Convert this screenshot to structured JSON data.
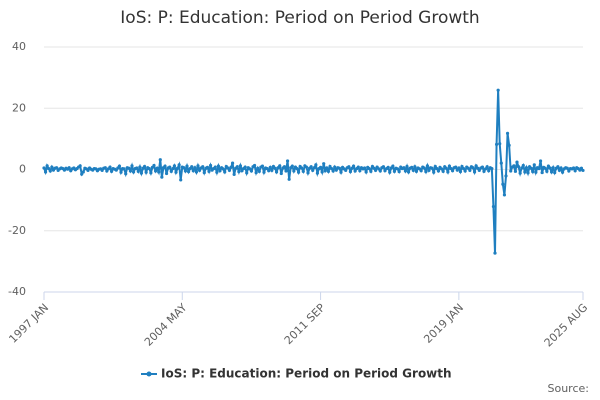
{
  "chart_data": {
    "type": "line",
    "title": "IoS: P: Education: Period on Period Growth",
    "source": "Source:",
    "categories": [
      "1997 JAN",
      null,
      null,
      null,
      null,
      null,
      null,
      null,
      null,
      null,
      null,
      null,
      null,
      null,
      null,
      null,
      null,
      null,
      null,
      null,
      null,
      null,
      null,
      null,
      null,
      null,
      null,
      null,
      null,
      null,
      null,
      null,
      null,
      null,
      null,
      null,
      null,
      null,
      null,
      null,
      null,
      null,
      null,
      null,
      null,
      null,
      null,
      null,
      null,
      null,
      null,
      null,
      null,
      null,
      null,
      null,
      null,
      null,
      null,
      null,
      null,
      null,
      null,
      null,
      null,
      null,
      null,
      null,
      null,
      null,
      null,
      null,
      null,
      null,
      null,
      null,
      null,
      null,
      null,
      null,
      null,
      null,
      null,
      null,
      null,
      null,
      null,
      null,
      "2004 MAY",
      null,
      null,
      null,
      null,
      null,
      null,
      null,
      null,
      null,
      null,
      null,
      null,
      null,
      null,
      null,
      null,
      null,
      null,
      null,
      null,
      null,
      null,
      null,
      null,
      null,
      null,
      null,
      null,
      null,
      null,
      null,
      null,
      null,
      null,
      null,
      null,
      null,
      null,
      null,
      null,
      null,
      null,
      null,
      null,
      null,
      null,
      null,
      null,
      null,
      null,
      null,
      null,
      null,
      null,
      null,
      null,
      null,
      null,
      null,
      null,
      null,
      null,
      null,
      null,
      null,
      null,
      null,
      null,
      null,
      null,
      null,
      null,
      null,
      null,
      null,
      null,
      null,
      null,
      null,
      null,
      null,
      null,
      null,
      null,
      null,
      null,
      null,
      "2011 SEP",
      null,
      null,
      null,
      null,
      null,
      null,
      null,
      null,
      null,
      null,
      null,
      null,
      null,
      null,
      null,
      null,
      null,
      null,
      null,
      null,
      null,
      null,
      null,
      null,
      null,
      null,
      null,
      null,
      null,
      null,
      null,
      null,
      null,
      null,
      null,
      null,
      null,
      null,
      null,
      null,
      null,
      null,
      null,
      null,
      null,
      null,
      null,
      null,
      null,
      null,
      null,
      null,
      null,
      null,
      null,
      null,
      null,
      null,
      null,
      null,
      null,
      null,
      null,
      null,
      null,
      null,
      null,
      null,
      null,
      null,
      null,
      null,
      null,
      null,
      null,
      null,
      null,
      null,
      null,
      null,
      null,
      null,
      null,
      null,
      null,
      null,
      null,
      "2019 JAN",
      null,
      null,
      null,
      null,
      null,
      null,
      null,
      null,
      null,
      null,
      null,
      null,
      null,
      null,
      null,
      null,
      null,
      null,
      null,
      null,
      null,
      null,
      null,
      null,
      null,
      null,
      null,
      null,
      null,
      null,
      null,
      null,
      null,
      null,
      null,
      null,
      null,
      null,
      null,
      null,
      null,
      null,
      null,
      null,
      null,
      null,
      null,
      null,
      null,
      null,
      null,
      null,
      null,
      null,
      null,
      null,
      null,
      null,
      null,
      null,
      null,
      null,
      null,
      null,
      null,
      null,
      null,
      null,
      null,
      null,
      null,
      null,
      null,
      null,
      null,
      null,
      null,
      null,
      "2025 AUG"
    ],
    "series": [
      {
        "name": "IoS: P: Education: Period on Period Growth",
        "color": "#1f7fc0",
        "values": [
          0.5,
          -0.8,
          1.2,
          0.3,
          -0.5,
          0.8,
          -0.2,
          0.4,
          0.6,
          -0.3,
          0.2,
          0.5,
          0.3,
          -0.2,
          0.4,
          0.1,
          0.6,
          -0.4,
          0.2,
          0.5,
          -0.1,
          0.3,
          0.8,
          1.2,
          -1.5,
          -0.8,
          0.4,
          0.2,
          -0.3,
          0.5,
          0.1,
          -0.2,
          0.3,
          0.2,
          -0.4,
          0.1,
          0.2,
          -0.3,
          0.4,
          0.6,
          -0.5,
          0.2,
          0.8,
          -0.6,
          0.3,
          0.1,
          -0.2,
          0.5,
          1.1,
          -0.9,
          0.3,
          0.2,
          -1.4,
          0.6,
          0.4,
          -0.5,
          1.2,
          -0.8,
          0.3,
          0.5,
          -0.6,
          0.8,
          -1.2,
          0.4,
          1.0,
          -0.9,
          0.6,
          0.3,
          -1.1,
          0.7,
          1.3,
          -0.5,
          0.4,
          -0.8,
          3.2,
          -2.5,
          0.6,
          1.1,
          -1.3,
          0.5,
          0.8,
          -0.6,
          0.3,
          1.2,
          -0.9,
          0.4,
          1.5,
          -3.4,
          0.8,
          0.6,
          -0.5,
          1.1,
          -0.7,
          0.3,
          0.9,
          -0.4,
          0.6,
          -0.8,
          1.2,
          -0.3,
          0.5,
          0.9,
          -1.0,
          0.4,
          0.7,
          -0.6,
          1.3,
          -0.2,
          0.3,
          0.8,
          -0.9,
          1.1,
          -0.4,
          0.6,
          0.2,
          -0.8,
          1.0,
          0.5,
          -0.3,
          0.7,
          2.1,
          -1.6,
          0.4,
          0.9,
          -0.7,
          1.2,
          -0.4,
          0.3,
          0.8,
          -1.1,
          0.6,
          0.2,
          -0.5,
          0.9,
          1.3,
          -1.0,
          0.4,
          -0.6,
          0.8,
          1.1,
          -0.9,
          0.5,
          0.3,
          -0.4,
          0.7,
          -0.3,
          1.0,
          0.4,
          -0.8,
          0.6,
          1.2,
          -1.3,
          0.5,
          0.9,
          -0.5,
          2.8,
          -3.2,
          0.6,
          1.1,
          -0.5,
          0.8,
          0.3,
          -0.9,
          1.0,
          0.5,
          -0.6,
          1.2,
          0.8,
          -1.1,
          0.4,
          0.9,
          -0.3,
          0.6,
          1.5,
          -1.2,
          0.3,
          0.7,
          -0.8,
          1.9,
          -0.4,
          0.5,
          -0.6,
          1.0,
          0.3,
          -0.5,
          0.8,
          -0.2,
          0.6,
          0.4,
          -0.9,
          0.7,
          0.2,
          -0.3,
          0.6,
          0.9,
          -0.7,
          0.4,
          1.1,
          -0.5,
          0.3,
          0.8,
          -0.4,
          0.6,
          0.2,
          0.5,
          -0.8,
          0.7,
          0.3,
          -0.6,
          1.0,
          0.4,
          -0.3,
          0.8,
          0.2,
          -0.5,
          0.6,
          0.9,
          -0.4,
          0.3,
          0.7,
          -0.9,
          0.5,
          1.1,
          -0.6,
          0.4,
          0.2,
          -0.7,
          0.8,
          0.3,
          0.6,
          -0.5,
          1.0,
          -0.8,
          0.4,
          0.7,
          -0.3,
          0.9,
          -0.6,
          0.5,
          0.2,
          -0.4,
          0.8,
          0.5,
          -0.7,
          1.2,
          -0.3,
          0.6,
          0.4,
          -0.9,
          1.0,
          0.3,
          -0.5,
          0.7,
          0.2,
          -0.6,
          0.9,
          0.4,
          -0.8,
          1.1,
          0.3,
          -0.4,
          0.6,
          0.8,
          -0.2,
          0.5,
          -0.7,
          1.0,
          0.3,
          -0.5,
          0.8,
          0.4,
          -0.3,
          0.9,
          0.6,
          -0.8,
          1.2,
          0.4,
          -0.3,
          0.5,
          0.8,
          -0.6,
          0.2,
          0.9,
          -0.4,
          0.6,
          0.3,
          -12.1,
          -27.3,
          8.2,
          25.9,
          8.4,
          2.1,
          -4.8,
          -8.3,
          -2.1,
          11.8,
          7.9,
          -0.5,
          0.8,
          1.2,
          -0.6,
          2.4,
          0.9,
          -1.2,
          0.5,
          1.3,
          -0.8,
          0.6,
          -1.1,
          0.9,
          0.4,
          -0.7,
          1.5,
          -0.9,
          0.6,
          0.3,
          2.8,
          -1.0,
          0.7,
          0.4,
          -0.6,
          1.1,
          0.5,
          -0.8,
          0.6,
          -1.0,
          0.4,
          0.9,
          -0.3,
          0.5,
          -0.9,
          0.2,
          0.6,
          0.4,
          -0.5,
          0.3,
          0.2,
          0.5,
          -0.4,
          0.6,
          0.3,
          -0.2,
          0.4,
          -0.3
        ]
      }
    ],
    "ylim": [
      -40,
      40
    ],
    "yticks": [
      -40,
      -20,
      0,
      20,
      40
    ],
    "grid": true
  }
}
